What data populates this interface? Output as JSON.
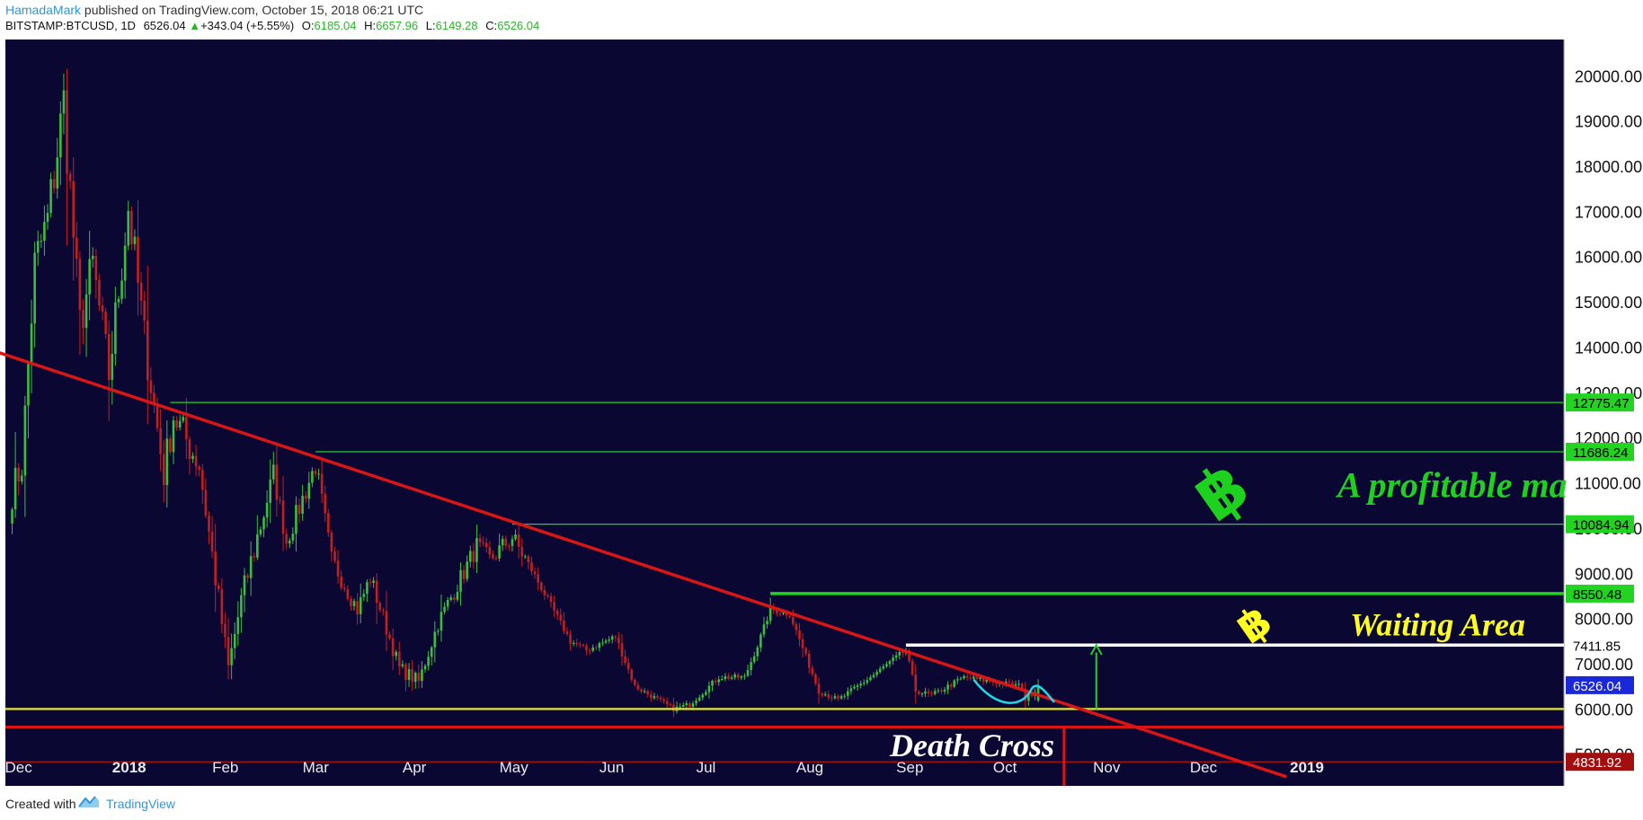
{
  "header": {
    "author": "HamadaMark",
    "published": " published on TradingView.com, October 15, 2018 06:21 UTC",
    "symbol": "BITSTAMP:BTCUSD, 1D",
    "last": "6526.04",
    "change": "+343.04 (+5.55%)",
    "o_label": "O:",
    "o": "6185.04",
    "h_label": "H:",
    "h": "6657.96",
    "l_label": "L:",
    "l": "6149.28",
    "c_label": "C:",
    "c": "6526.04"
  },
  "footer": {
    "created": "Created with",
    "brand": "TradingView"
  },
  "chart_data": {
    "type": "candlestick",
    "x_tick_labels": [
      "Dec",
      "2018",
      "Feb",
      "Mar",
      "Apr",
      "May",
      "Jun",
      "Jul",
      "Aug",
      "Sep",
      "Oct",
      "Nov",
      "Dec",
      "2019"
    ],
    "y_tick_labels": [
      "5000.00",
      "6000.00",
      "7000.00",
      "8000.00",
      "9000.00",
      "10000.00",
      "11000.00",
      "12000.00",
      "13000.00",
      "14000.00",
      "15000.00",
      "16000.00",
      "17000.00",
      "18000.00",
      "19000.00",
      "20000.00"
    ],
    "ylim": [
      4300,
      20800
    ],
    "anchors": [
      [
        "2017-12-01",
        10800
      ],
      [
        "2017-12-04",
        11400
      ],
      [
        "2017-12-08",
        15800
      ],
      [
        "2017-12-12",
        16800
      ],
      [
        "2017-12-17",
        19400
      ],
      [
        "2017-12-22",
        14500
      ],
      [
        "2017-12-26",
        15800
      ],
      [
        "2017-12-31",
        13400
      ],
      [
        "2018-01-06",
        17100
      ],
      [
        "2018-01-11",
        14200
      ],
      [
        "2018-01-17",
        11200
      ],
      [
        "2018-01-20",
        12500
      ],
      [
        "2018-01-28",
        11400
      ],
      [
        "2018-02-06",
        6900
      ],
      [
        "2018-02-10",
        8400
      ],
      [
        "2018-02-20",
        11200
      ],
      [
        "2018-02-24",
        9700
      ],
      [
        "2018-03-05",
        11400
      ],
      [
        "2018-03-10",
        9300
      ],
      [
        "2018-03-18",
        8200
      ],
      [
        "2018-03-22",
        8900
      ],
      [
        "2018-03-31",
        6900
      ],
      [
        "2018-04-06",
        6600
      ],
      [
        "2018-04-12",
        7900
      ],
      [
        "2018-04-24",
        9600
      ],
      [
        "2018-04-28",
        9300
      ],
      [
        "2018-05-05",
        9800
      ],
      [
        "2018-05-10",
        9200
      ],
      [
        "2018-05-23",
        7500
      ],
      [
        "2018-05-28",
        7300
      ],
      [
        "2018-06-06",
        7600
      ],
      [
        "2018-06-12",
        6500
      ],
      [
        "2018-06-24",
        6000
      ],
      [
        "2018-06-29",
        6100
      ],
      [
        "2018-07-08",
        6700
      ],
      [
        "2018-07-16",
        6700
      ],
      [
        "2018-07-20",
        7400
      ],
      [
        "2018-07-24",
        8200
      ],
      [
        "2018-07-30",
        8100
      ],
      [
        "2018-08-08",
        6400
      ],
      [
        "2018-08-14",
        6200
      ],
      [
        "2018-08-24",
        6700
      ],
      [
        "2018-09-04",
        7300
      ],
      [
        "2018-09-07",
        6400
      ],
      [
        "2018-09-12",
        6300
      ],
      [
        "2018-09-22",
        6700
      ],
      [
        "2018-10-10",
        6500
      ],
      [
        "2018-10-11",
        6200
      ],
      [
        "2018-10-15",
        6500
      ]
    ],
    "last_candle": {
      "date": "2018-10-15",
      "open": 6185.04,
      "high": 6657.96,
      "low": 6149.28,
      "close": 6526.04
    },
    "trendline": {
      "from": [
        "2017-11-26",
        13900
      ],
      "to": [
        "2018-12-31",
        4500
      ]
    },
    "support_line": 6000,
    "death_cross_line": 5600,
    "low_line": 4831.92,
    "levels": [
      {
        "value": 12775.47,
        "label": "12775.47",
        "from": "2018-01-19"
      },
      {
        "value": 11686.24,
        "label": "11686.24",
        "from": "2018-03-05"
      },
      {
        "value": 10084.94,
        "label": "10084.94",
        "from": "2018-05-05"
      },
      {
        "value": 8550.48,
        "label": "8550.48",
        "from": "2018-07-24"
      },
      {
        "value": 7411.85,
        "label": "7411.85",
        "from": "2018-09-04"
      }
    ],
    "last_price_label": "6526.04",
    "low_label": "4831.92",
    "annotations": {
      "profitable": "A profitable ma",
      "waiting": "Waiting Area",
      "death_cross": "Death Cross",
      "btc_symbol": "฿"
    },
    "colors": {
      "background": "#0b0733",
      "up": "#3dbd3d",
      "down": "#c21f1f",
      "trend": "#d91616",
      "level_green": "#22d322",
      "level_white": "#ffffff",
      "support_yellow": "#cfd34a",
      "annotation_green": "#1fd11f",
      "annotation_yellow": "#ffff22",
      "last_price_tag": "#1a28d8"
    }
  }
}
